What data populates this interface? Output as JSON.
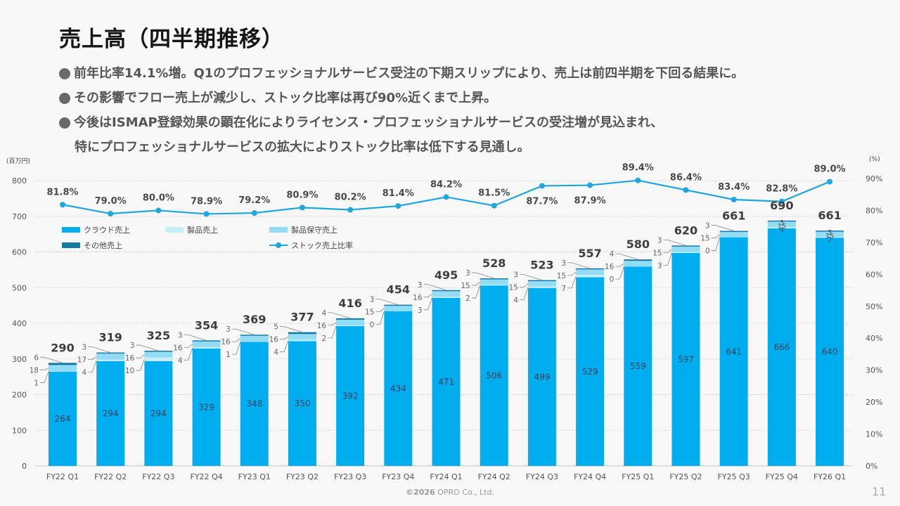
{
  "slide": {
    "title": "売上高（四半期推移）",
    "bullets": [
      {
        "text": "前年比率14.1%増。Q1のプロフェッショナルサービス受注の下期スリップにより、売上は前四半期を下回る結果に。"
      },
      {
        "text": "その影響でフロー売上が減少し、ストック比率は再び90%近くまで上昇。"
      },
      {
        "text": "今後はISMAP登録効果の顕在化によりライセンス・プロフェッショナルサービスの受注増が見込まれ、"
      },
      {
        "text": "特にプロフェッショナルサービスの拡大によりストック比率は低下する見通し。"
      }
    ],
    "footer": {
      "copyright_year": "©2026",
      "company": "OPRO Co., Ltd."
    },
    "page_number": "11"
  },
  "chart_data": {
    "type": "bar",
    "subtype": "stacked bar with line on secondary axis",
    "title": "",
    "xlabel": "",
    "ylabel": "(百万円)",
    "y2label": "(%)",
    "ylim": [
      0,
      800
    ],
    "y_ticks": [
      0,
      100,
      200,
      300,
      400,
      500,
      600,
      700,
      800
    ],
    "y2lim": [
      0,
      90
    ],
    "y2_ticks": [
      0,
      10,
      20,
      30,
      40,
      50,
      60,
      70,
      80,
      90
    ],
    "y2_tick_suffix": "%",
    "grid": true,
    "legend": "top-left",
    "categories": [
      "FY22 Q1",
      "FY22 Q2",
      "FY22 Q3",
      "FY22 Q4",
      "FY23 Q1",
      "FY23 Q2",
      "FY23 Q3",
      "FY23 Q4",
      "FY24 Q1",
      "FY24 Q2",
      "FY24 Q3",
      "FY24 Q4",
      "FY25 Q1",
      "FY25 Q2",
      "FY25 Q3",
      "FY25 Q4",
      "FY26 Q1"
    ],
    "series": [
      {
        "name": "クラウド売上",
        "type": "bar",
        "color": "#00adef",
        "values": [
          264,
          294,
          294,
          329,
          348,
          350,
          392,
          434,
          471,
          506,
          499,
          529,
          559,
          597,
          641,
          666,
          640
        ]
      },
      {
        "name": "製品売上",
        "type": "bar",
        "color": "#c9eefb",
        "values": [
          1,
          4,
          10,
          4,
          1,
          4,
          2,
          0,
          3,
          2,
          4,
          7,
          0,
          3,
          0,
          4,
          2
        ]
      },
      {
        "name": "製品保守売上",
        "type": "bar",
        "color": "#93dcf6",
        "values": [
          18,
          17,
          16,
          16,
          16,
          16,
          16,
          15,
          16,
          15,
          15,
          15,
          16,
          15,
          15,
          15,
          15
        ]
      },
      {
        "name": "その他売上",
        "type": "bar",
        "color": "#1579a8",
        "values": [
          6,
          3,
          3,
          3,
          3,
          5,
          4,
          3,
          3,
          3,
          3,
          3,
          4,
          3,
          3,
          3,
          3
        ]
      },
      {
        "name": "ストック売上比率",
        "type": "line",
        "axis": "right",
        "unit": "%",
        "color": "#1ea6dd",
        "values": [
          81.8,
          79.0,
          80.0,
          78.9,
          79.2,
          80.9,
          80.2,
          81.4,
          84.2,
          81.5,
          87.7,
          87.9,
          89.4,
          86.4,
          83.4,
          82.8,
          89.0
        ]
      }
    ],
    "totals": [
      290,
      319,
      325,
      354,
      369,
      377,
      416,
      454,
      495,
      528,
      523,
      557,
      580,
      620,
      661,
      690,
      661
    ]
  }
}
